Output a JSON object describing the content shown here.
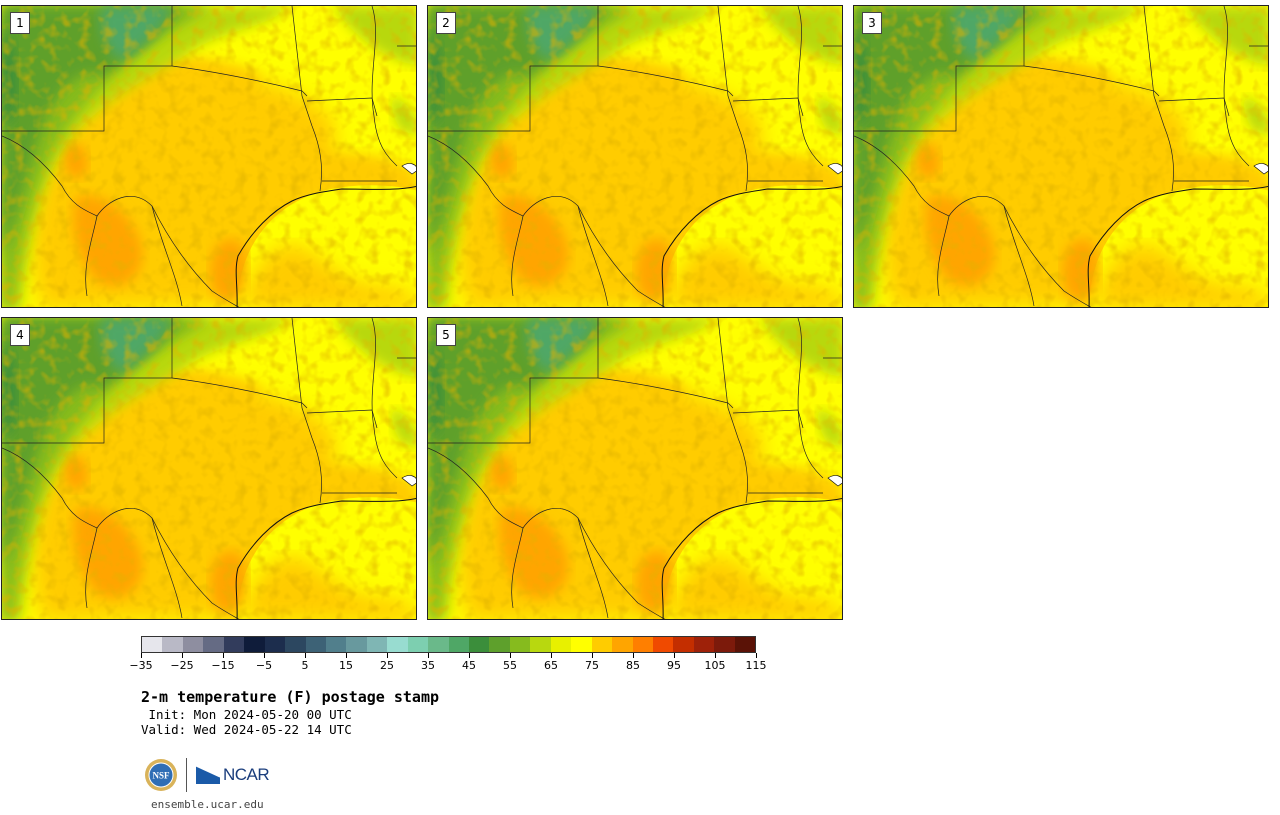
{
  "panels": [
    {
      "label": "1"
    },
    {
      "label": "2"
    },
    {
      "label": "3"
    },
    {
      "label": "4"
    },
    {
      "label": "5"
    }
  ],
  "colorbar": {
    "colors": [
      "#e6e6ec",
      "#b9b9c6",
      "#8e8ea0",
      "#656b84",
      "#323c5c",
      "#0f1c3a",
      "#1c2d4d",
      "#2c4760",
      "#3d6276",
      "#517f8c",
      "#68999e",
      "#7fb6b4",
      "#98dcd0",
      "#7dcfb0",
      "#6ab98a",
      "#4fa766",
      "#3b8e3b",
      "#5ea02c",
      "#86bb1e",
      "#b8d80f",
      "#e8f000",
      "#ffff00",
      "#ffcc00",
      "#ffa500",
      "#ff7f00",
      "#f04a00",
      "#c42e00",
      "#9e2109",
      "#7c1a0b",
      "#5a1206"
    ],
    "tick_labels": [
      "−35",
      "−25",
      "−15",
      "−5",
      "5",
      "15",
      "25",
      "35",
      "45",
      "55",
      "65",
      "75",
      "85",
      "95",
      "105",
      "115"
    ]
  },
  "title": "2-m temperature (F) postage stamp",
  "init_line": " Init: Mon 2024-05-20 00 UTC",
  "valid_line": "Valid: Wed 2024-05-22 14 UTC",
  "logos": {
    "nsf": "NSF",
    "ncar": "NCAR"
  },
  "site": "ensemble.ucar.edu"
}
